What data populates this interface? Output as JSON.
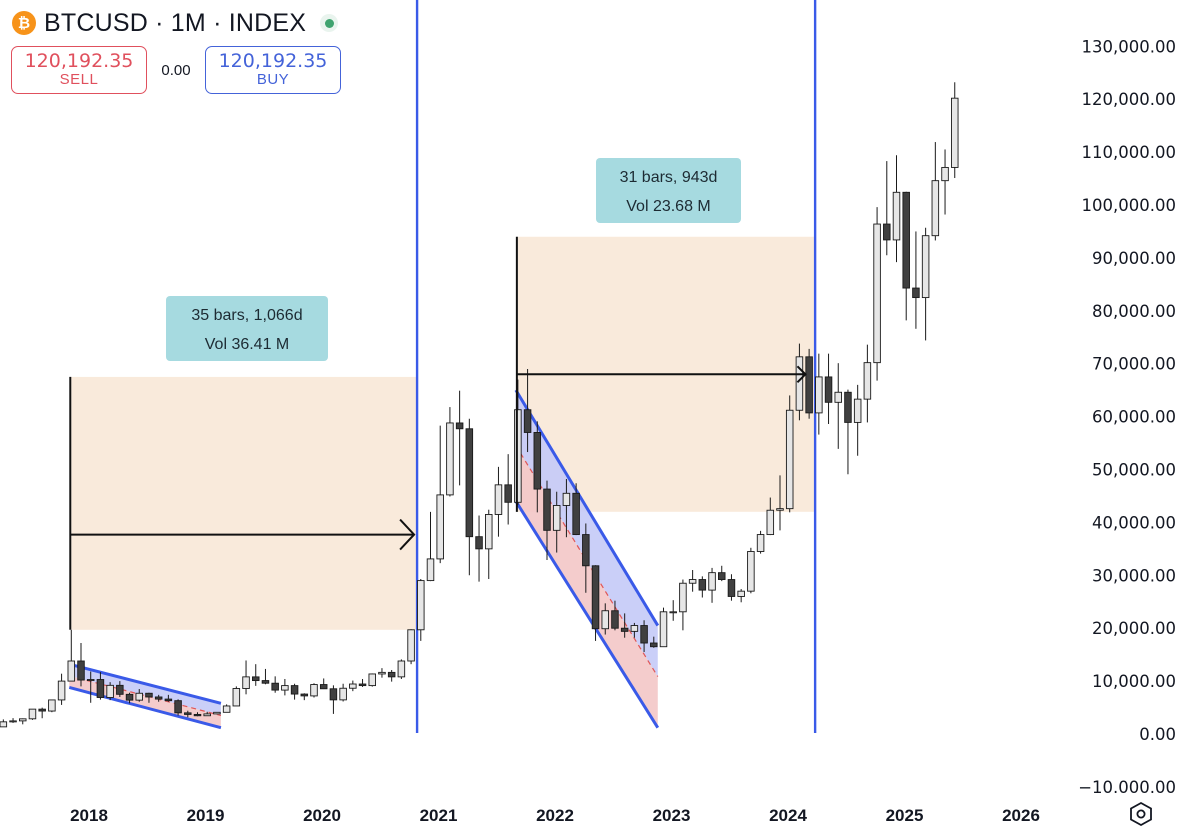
{
  "header": {
    "coin_glyph": "₿",
    "title": "BTCUSD · 1M · INDEX",
    "sell_price": "120,192.35",
    "sell_label": "SELL",
    "spread": "0.00",
    "buy_price": "120,192.35",
    "buy_label": "BUY"
  },
  "colors": {
    "up_fill": "#e6e6e6",
    "down_fill": "#404040",
    "candle_stroke": "#1a1a1a",
    "range_fill": "#f9eadb",
    "vline": "#3a5ae8",
    "channel_blue": "#c4caf7",
    "channel_red": "#f3c6c6",
    "label_bg": "#a6dae0"
  },
  "annotations": [
    {
      "line1": "35 bars, 1,066d",
      "line2": "Vol 36.41 M"
    },
    {
      "line1": "31 bars, 943d",
      "line2": "Vol 23.68 M"
    }
  ],
  "chart_data": {
    "type": "candlestick",
    "title": "BTCUSD · 1M · INDEX",
    "interval": "1M",
    "xlabel": "",
    "ylabel": "",
    "ylim": [
      -10000,
      130000
    ],
    "y_ticks": [
      "130,000.00",
      "120,000.00",
      "110,000.00",
      "100,000.00",
      "90,000.00",
      "80,000.00",
      "70,000.00",
      "60,000.00",
      "50,000.00",
      "40,000.00",
      "30,000.00",
      "20,000.00",
      "10,000.00",
      "0.00",
      "−10.000.00"
    ],
    "y_tick_values": [
      130000,
      120000,
      110000,
      100000,
      90000,
      80000,
      70000,
      60000,
      50000,
      40000,
      30000,
      20000,
      10000,
      0,
      -10000
    ],
    "x_ticks": [
      "2018",
      "2019",
      "2020",
      "2021",
      "2022",
      "2023",
      "2024",
      "2025",
      "2026"
    ],
    "x_tick_values": [
      2018.0,
      2019.0,
      2020.0,
      2021.0,
      2022.0,
      2023.0,
      2024.0,
      2025.0,
      2026.0
    ],
    "grid": false,
    "candles": [
      [
        "2017-01",
        960,
        1200,
        750,
        970
      ],
      [
        "2017-02",
        970,
        1210,
        930,
        1190
      ],
      [
        "2017-03",
        1190,
        1350,
        900,
        1080
      ],
      [
        "2017-04",
        1080,
        1450,
        1060,
        1350
      ],
      [
        "2017-05",
        1350,
        2760,
        1350,
        2300
      ],
      [
        "2017-06",
        2300,
        3000,
        2100,
        2480
      ],
      [
        "2017-07",
        2480,
        2950,
        1830,
        2870
      ],
      [
        "2017-08",
        2870,
        4700,
        2670,
        4700
      ],
      [
        "2017-09",
        4700,
        4980,
        2980,
        4340
      ],
      [
        "2017-10",
        4340,
        6450,
        4120,
        6440
      ],
      [
        "2017-11",
        6440,
        11400,
        5500,
        10000
      ],
      [
        "2017-12",
        10000,
        19700,
        10000,
        13800
      ],
      [
        "2018-01",
        13800,
        17200,
        9000,
        10200
      ],
      [
        "2018-02",
        10200,
        11800,
        5900,
        10300
      ],
      [
        "2018-03",
        10300,
        11700,
        6500,
        6900
      ],
      [
        "2018-04",
        6900,
        9800,
        6400,
        9200
      ],
      [
        "2018-05",
        9200,
        10000,
        7000,
        7500
      ],
      [
        "2018-06",
        7500,
        7800,
        5800,
        6400
      ],
      [
        "2018-07",
        6400,
        8500,
        6100,
        7700
      ],
      [
        "2018-08",
        7700,
        7800,
        5900,
        7000
      ],
      [
        "2018-09",
        7000,
        7400,
        6100,
        6600
      ],
      [
        "2018-10",
        6600,
        7400,
        6100,
        6300
      ],
      [
        "2018-11",
        6300,
        6550,
        3500,
        4000
      ],
      [
        "2018-12",
        4000,
        4400,
        3150,
        3700
      ],
      [
        "2019-01",
        3700,
        4100,
        3350,
        3450
      ],
      [
        "2019-02",
        3450,
        4200,
        3400,
        3800
      ],
      [
        "2019-03",
        3800,
        4100,
        3700,
        4100
      ],
      [
        "2019-04",
        4100,
        5600,
        4100,
        5300
      ],
      [
        "2019-05",
        5300,
        9000,
        5300,
        8600
      ],
      [
        "2019-06",
        8600,
        13900,
        7500,
        10800
      ],
      [
        "2019-07",
        10800,
        13200,
        9100,
        10100
      ],
      [
        "2019-08",
        10100,
        12300,
        9400,
        9600
      ],
      [
        "2019-09",
        9600,
        10900,
        7800,
        8300
      ],
      [
        "2019-10",
        8300,
        10400,
        7300,
        9150
      ],
      [
        "2019-11",
        9150,
        9500,
        6500,
        7550
      ],
      [
        "2019-12",
        7550,
        7700,
        6400,
        7200
      ],
      [
        "2020-01",
        7200,
        9600,
        6900,
        9350
      ],
      [
        "2020-02",
        9350,
        10500,
        8500,
        8550
      ],
      [
        "2020-03",
        8550,
        9200,
        3800,
        6450
      ],
      [
        "2020-04",
        6450,
        9500,
        6150,
        8650
      ],
      [
        "2020-05",
        8650,
        10100,
        8100,
        9450
      ],
      [
        "2020-06",
        9450,
        10400,
        8900,
        9150
      ],
      [
        "2020-07",
        9150,
        11450,
        8950,
        11350
      ],
      [
        "2020-08",
        11350,
        12450,
        10650,
        11650
      ],
      [
        "2020-09",
        11650,
        12100,
        9900,
        10800
      ],
      [
        "2020-10",
        10800,
        14100,
        10400,
        13800
      ],
      [
        "2020-11",
        13800,
        19800,
        13200,
        19700
      ],
      [
        "2020-12",
        19700,
        29300,
        17600,
        29000
      ],
      [
        "2021-01",
        29000,
        42000,
        28900,
        33100
      ],
      [
        "2021-02",
        33100,
        58300,
        32300,
        45200
      ],
      [
        "2021-03",
        45200,
        61800,
        44900,
        58800
      ],
      [
        "2021-04",
        58800,
        64900,
        47000,
        57700
      ],
      [
        "2021-05",
        57700,
        59600,
        30000,
        37300
      ],
      [
        "2021-06",
        37300,
        41300,
        28800,
        35000
      ],
      [
        "2021-07",
        35000,
        42400,
        29300,
        41500
      ],
      [
        "2021-08",
        41500,
        50500,
        37300,
        47100
      ],
      [
        "2021-09",
        47100,
        52900,
        39600,
        43800
      ],
      [
        "2021-10",
        43800,
        67000,
        43300,
        61300
      ],
      [
        "2021-11",
        61300,
        69000,
        53300,
        57000
      ],
      [
        "2021-12",
        57000,
        59100,
        41900,
        46300
      ],
      [
        "2022-01",
        46300,
        47900,
        32900,
        38500
      ],
      [
        "2022-02",
        38500,
        45800,
        34300,
        43200
      ],
      [
        "2022-03",
        43200,
        48200,
        37200,
        45500
      ],
      [
        "2022-04",
        45500,
        47400,
        37600,
        37700
      ],
      [
        "2022-05",
        37700,
        39800,
        26700,
        31800
      ],
      [
        "2022-06",
        31800,
        31900,
        17600,
        19900
      ],
      [
        "2022-07",
        19900,
        24700,
        18800,
        23300
      ],
      [
        "2022-08",
        23300,
        25200,
        19600,
        20000
      ],
      [
        "2022-09",
        20000,
        22800,
        18200,
        19400
      ],
      [
        "2022-10",
        19400,
        21000,
        18200,
        20500
      ],
      [
        "2022-11",
        20500,
        21500,
        15500,
        17200
      ],
      [
        "2022-12",
        17200,
        18400,
        16300,
        16500
      ],
      [
        "2023-01",
        16500,
        23900,
        16500,
        23100
      ],
      [
        "2023-02",
        23100,
        25300,
        21400,
        23100
      ],
      [
        "2023-03",
        23100,
        29200,
        19600,
        28500
      ],
      [
        "2023-04",
        28500,
        31000,
        26900,
        29200
      ],
      [
        "2023-05",
        29200,
        29800,
        25800,
        27200
      ],
      [
        "2023-06",
        27200,
        31400,
        24800,
        30500
      ],
      [
        "2023-07",
        30500,
        31800,
        28900,
        29200
      ],
      [
        "2023-08",
        29200,
        30200,
        25200,
        26000
      ],
      [
        "2023-09",
        26000,
        27400,
        24900,
        27000
      ],
      [
        "2023-10",
        27000,
        35200,
        26600,
        34500
      ],
      [
        "2023-11",
        34500,
        38400,
        34100,
        37700
      ],
      [
        "2023-12",
        37700,
        44700,
        37600,
        42300
      ],
      [
        "2024-01",
        42300,
        48900,
        38500,
        42600
      ],
      [
        "2024-02",
        42600,
        64000,
        41900,
        61200
      ],
      [
        "2024-03",
        61200,
        73800,
        59300,
        71300
      ],
      [
        "2024-04",
        71300,
        72800,
        59600,
        60700
      ],
      [
        "2024-05",
        60700,
        71900,
        56600,
        67500
      ],
      [
        "2024-06",
        67500,
        71900,
        58600,
        62700
      ],
      [
        "2024-07",
        62700,
        70100,
        53900,
        64600
      ],
      [
        "2024-08",
        64600,
        65100,
        49100,
        58900
      ],
      [
        "2024-09",
        58900,
        66000,
        52600,
        63300
      ],
      [
        "2024-10",
        63300,
        73600,
        58900,
        70200
      ],
      [
        "2024-11",
        70200,
        99600,
        66800,
        96400
      ],
      [
        "2024-12",
        96400,
        108300,
        90500,
        93400
      ],
      [
        "2025-01",
        93400,
        109400,
        89200,
        102400
      ],
      [
        "2025-02",
        102400,
        102500,
        78200,
        84300
      ],
      [
        "2025-03",
        84300,
        95000,
        76600,
        82500
      ],
      [
        "2025-04",
        82500,
        95700,
        74400,
        94200
      ],
      [
        "2025-05",
        94200,
        111900,
        93300,
        104600
      ],
      [
        "2025-06",
        104600,
        110500,
        98200,
        107100
      ],
      [
        "2025-07",
        107100,
        123200,
        105100,
        120192
      ]
    ],
    "range_measures": [
      {
        "start": "2017-12",
        "end": "2020-11",
        "high": 67500,
        "low": 19700,
        "label": "35 bars, 1,066d",
        "vol": "Vol 36.41 M"
      },
      {
        "start": "2021-10",
        "end": "2024-04",
        "high": 94000,
        "low": 42000,
        "label": "31 bars, 943d",
        "vol": "Vol 23.68 M"
      }
    ],
    "vertical_lines": [
      "2020-11",
      "2024-04"
    ],
    "channels": [
      {
        "start": "2017-12",
        "end": "2019-03",
        "upper": [
          13200,
          5800
        ],
        "lower": [
          8800,
          1200
        ]
      },
      {
        "start": "2021-10",
        "end": "2022-12",
        "upper": [
          65000,
          20500
        ],
        "lower": [
          44000,
          1200
        ]
      }
    ]
  }
}
